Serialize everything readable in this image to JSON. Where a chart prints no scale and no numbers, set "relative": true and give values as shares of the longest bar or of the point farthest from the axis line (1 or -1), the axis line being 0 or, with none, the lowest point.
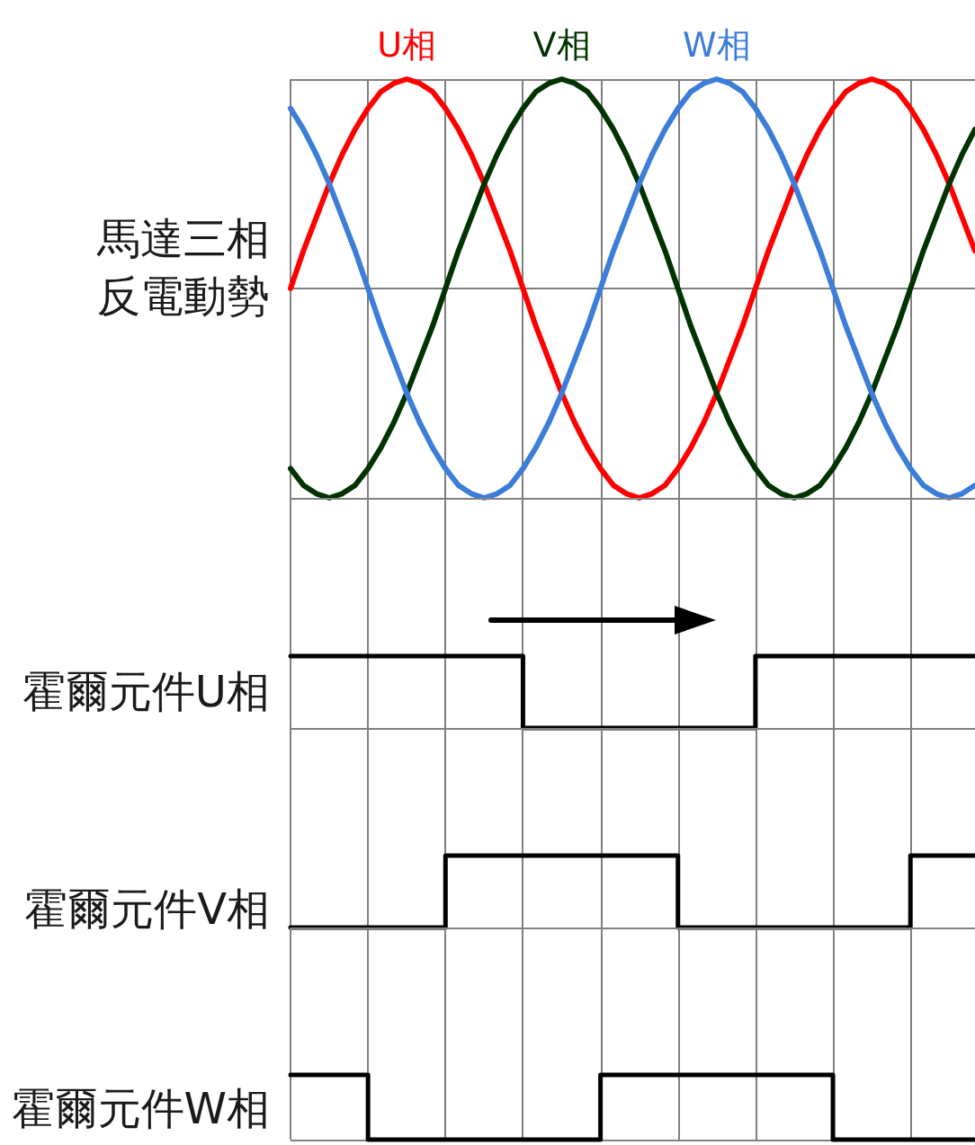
{
  "chart_data": [
    {
      "type": "line",
      "ylabel": "馬達三相反電動勢",
      "relative": true,
      "grid": true,
      "tick_labels": false,
      "marker": "none",
      "categories": [
        null,
        null,
        null,
        null,
        null,
        null,
        null,
        null,
        null,
        null,
        null,
        null,
        null,
        null,
        null,
        null,
        null,
        null,
        null,
        null,
        null,
        null,
        null,
        null,
        null,
        null,
        null,
        null,
        null,
        null,
        null,
        null,
        null,
        null,
        null,
        null,
        null,
        null,
        null,
        null,
        null,
        null,
        null,
        null,
        null,
        null,
        null,
        null,
        null,
        null,
        null,
        null,
        null,
        null
      ],
      "series": [
        {
          "name": "U相",
          "color": "#ff0000",
          "values": [
            0.5,
            0.59,
            0.67,
            0.75,
            0.82,
            0.88,
            0.93,
            0.97,
            0.99,
            1,
            0.99,
            0.97,
            0.93,
            0.88,
            0.82,
            0.75,
            0.67,
            0.59,
            0.5,
            0.41,
            0.33,
            0.25,
            0.18,
            0.12,
            0.07,
            0.03,
            0.01,
            0,
            0.01,
            0.03,
            0.07,
            0.12,
            0.18,
            0.25,
            0.33,
            0.41,
            0.5,
            0.59,
            0.67,
            0.75,
            0.82,
            0.88,
            0.93,
            0.97,
            0.99,
            1,
            0.99,
            0.97,
            0.93,
            0.88,
            0.82,
            0.75,
            0.67,
            0.59
          ]
        },
        {
          "name": "V相",
          "color": "#003300",
          "values": [
            0.07,
            0.03,
            0.01,
            0,
            0.01,
            0.03,
            0.07,
            0.12,
            0.18,
            0.25,
            0.33,
            0.41,
            0.5,
            0.59,
            0.67,
            0.75,
            0.82,
            0.88,
            0.93,
            0.97,
            0.99,
            1,
            0.99,
            0.97,
            0.93,
            0.88,
            0.82,
            0.75,
            0.67,
            0.59,
            0.5,
            0.41,
            0.33,
            0.25,
            0.18,
            0.12,
            0.07,
            0.03,
            0.01,
            0,
            0.01,
            0.03,
            0.07,
            0.12,
            0.18,
            0.25,
            0.33,
            0.41,
            0.5,
            0.59,
            0.67,
            0.75,
            0.82,
            0.88
          ]
        },
        {
          "name": "W相",
          "color": "#3b7dd8",
          "values": [
            0.93,
            0.88,
            0.82,
            0.75,
            0.67,
            0.59,
            0.5,
            0.41,
            0.33,
            0.25,
            0.18,
            0.12,
            0.07,
            0.03,
            0.01,
            0,
            0.01,
            0.03,
            0.07,
            0.12,
            0.18,
            0.25,
            0.33,
            0.41,
            0.5,
            0.59,
            0.67,
            0.75,
            0.82,
            0.88,
            0.93,
            0.97,
            0.99,
            1,
            0.99,
            0.97,
            0.93,
            0.88,
            0.82,
            0.75,
            0.67,
            0.59,
            0.5,
            0.41,
            0.33,
            0.25,
            0.18,
            0.12,
            0.07,
            0.03,
            0.01,
            0,
            0.01,
            0.03
          ]
        }
      ]
    },
    {
      "type": "step",
      "ylabel": "霍爾元件U相",
      "relative": true,
      "grid": true,
      "tick_labels": false,
      "marker": "none",
      "color": "#000000",
      "categories": [
        null,
        null,
        null,
        null,
        null,
        null,
        null,
        null,
        null,
        null,
        null,
        null,
        null,
        null,
        null,
        null,
        null,
        null,
        null,
        null,
        null,
        null,
        null,
        null,
        null,
        null,
        null,
        null,
        null,
        null,
        null,
        null,
        null,
        null,
        null,
        null,
        null,
        null,
        null,
        null,
        null,
        null,
        null,
        null,
        null,
        null,
        null,
        null,
        null,
        null,
        null,
        null,
        null,
        null
      ],
      "values": [
        1,
        1,
        1,
        1,
        1,
        1,
        1,
        1,
        1,
        1,
        1,
        1,
        1,
        1,
        1,
        1,
        1,
        1,
        0,
        0,
        0,
        0,
        0,
        0,
        0,
        0,
        0,
        0,
        0,
        0,
        0,
        0,
        0,
        0,
        0,
        0,
        1,
        1,
        1,
        1,
        1,
        1,
        1,
        1,
        1,
        1,
        1,
        1,
        1,
        1,
        1,
        1,
        1,
        1
      ]
    },
    {
      "type": "step",
      "ylabel": "霍爾元件V相",
      "relative": true,
      "grid": true,
      "tick_labels": false,
      "marker": "none",
      "color": "#000000",
      "categories": [
        null,
        null,
        null,
        null,
        null,
        null,
        null,
        null,
        null,
        null,
        null,
        null,
        null,
        null,
        null,
        null,
        null,
        null,
        null,
        null,
        null,
        null,
        null,
        null,
        null,
        null,
        null,
        null,
        null,
        null,
        null,
        null,
        null,
        null,
        null,
        null,
        null,
        null,
        null,
        null,
        null,
        null,
        null,
        null,
        null,
        null,
        null,
        null,
        null,
        null,
        null,
        null,
        null,
        null
      ],
      "values": [
        0,
        0,
        0,
        0,
        0,
        0,
        0,
        0,
        0,
        0,
        0,
        0,
        1,
        1,
        1,
        1,
        1,
        1,
        1,
        1,
        1,
        1,
        1,
        1,
        1,
        1,
        1,
        1,
        1,
        1,
        0,
        0,
        0,
        0,
        0,
        0,
        0,
        0,
        0,
        0,
        0,
        0,
        0,
        0,
        0,
        0,
        0,
        0,
        1,
        1,
        1,
        1,
        1,
        1
      ]
    },
    {
      "type": "step",
      "ylabel": "霍爾元件W相",
      "relative": true,
      "grid": true,
      "tick_labels": false,
      "marker": "none",
      "color": "#000000",
      "categories": [
        null,
        null,
        null,
        null,
        null,
        null,
        null,
        null,
        null,
        null,
        null,
        null,
        null,
        null,
        null,
        null,
        null,
        null,
        null,
        null,
        null,
        null,
        null,
        null,
        null,
        null,
        null,
        null,
        null,
        null,
        null,
        null,
        null,
        null,
        null,
        null,
        null,
        null,
        null,
        null,
        null,
        null,
        null,
        null,
        null,
        null,
        null,
        null,
        null,
        null,
        null,
        null,
        null,
        null
      ],
      "values": [
        1,
        1,
        1,
        1,
        1,
        1,
        0,
        0,
        0,
        0,
        0,
        0,
        0,
        0,
        0,
        0,
        0,
        0,
        0,
        0,
        0,
        0,
        0,
        0,
        1,
        1,
        1,
        1,
        1,
        1,
        1,
        1,
        1,
        1,
        1,
        1,
        1,
        1,
        1,
        1,
        1,
        1,
        0,
        0,
        0,
        0,
        0,
        0,
        0,
        0,
        0,
        0,
        0,
        0
      ]
    }
  ]
}
